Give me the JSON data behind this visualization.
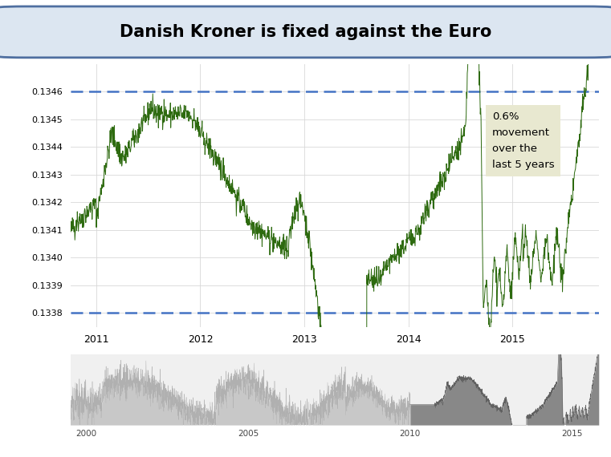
{
  "title": "Danish Kroner is fixed against the Euro",
  "title_bg": "#dce6f1",
  "title_border": "#4f6fa0",
  "upper_band": 0.1346,
  "lower_band": 0.1338,
  "ylim": [
    0.13375,
    0.1347
  ],
  "yticks": [
    0.1338,
    0.1339,
    0.134,
    0.1341,
    0.1342,
    0.1343,
    0.1344,
    0.1345,
    0.1346
  ],
  "line_color": "#2d6a0f",
  "band_color": "#4472c4",
  "annotation_text": "0.6%\nmovement\nover the\nlast 5 years",
  "annotation_bg": "#e8e8d0",
  "bg_color": "#ffffff",
  "x_start_year": 2010.75,
  "x_end_year": 2015.83,
  "xtick_years": [
    2011,
    2012,
    2013,
    2014,
    2015
  ]
}
